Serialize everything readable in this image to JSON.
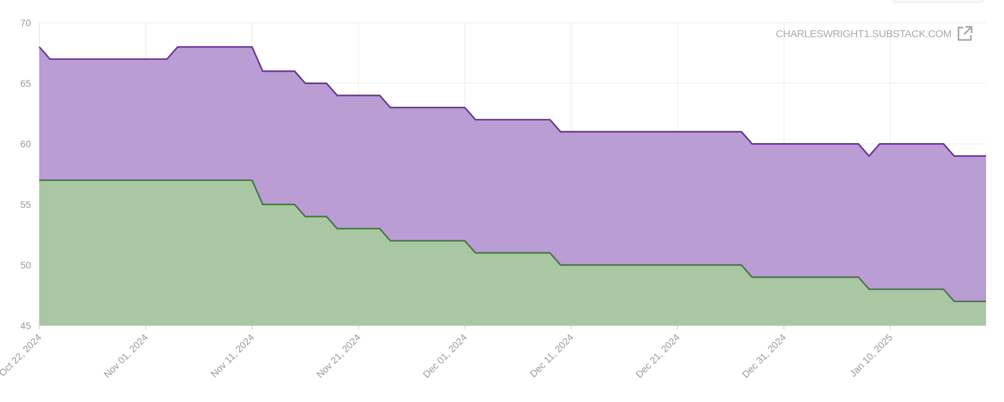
{
  "watermark": {
    "text": "CHARLESWRIGHT1.SUBSTACK.COM",
    "icon": "external-link-icon"
  },
  "colors": {
    "purple_line": "#6a2aa0",
    "purple_fill": "#b99dd3",
    "green_line": "#3f7a34",
    "green_fill": "#aac7a4",
    "grid": "#ececec",
    "tick_text": "#999999"
  },
  "chart_data": {
    "type": "area",
    "x_is_date": true,
    "xlim": [
      "2024-10-22",
      "2025-01-19"
    ],
    "ylim": [
      45,
      70
    ],
    "y_ticks": [
      "45",
      "50",
      "55",
      "60",
      "65",
      "70"
    ],
    "x_ticks": [
      {
        "date": "2024-10-22",
        "label": "Oct 22, 2024"
      },
      {
        "date": "2024-11-01",
        "label": "Nov 01, 2024"
      },
      {
        "date": "2024-11-11",
        "label": "Nov 11, 2024"
      },
      {
        "date": "2024-11-21",
        "label": "Nov 21, 2024"
      },
      {
        "date": "2024-12-01",
        "label": "Dec 01, 2024"
      },
      {
        "date": "2024-12-11",
        "label": "Dec 11, 2024"
      },
      {
        "date": "2024-12-21",
        "label": "Dec 21, 2024"
      },
      {
        "date": "2024-12-31",
        "label": "Dec 31, 2024"
      },
      {
        "date": "2025-01-10",
        "label": "Jan 10, 2025"
      }
    ],
    "grid": true,
    "legend": "none",
    "series": [
      {
        "color": "#6a2aa0",
        "fill": "#b99dd3",
        "points": [
          [
            "2024-10-22",
            68
          ],
          [
            "2024-10-23",
            67
          ],
          [
            "2024-11-03",
            67
          ],
          [
            "2024-11-04",
            68
          ],
          [
            "2024-11-11",
            68
          ],
          [
            "2024-11-12",
            66
          ],
          [
            "2024-11-15",
            66
          ],
          [
            "2024-11-16",
            65
          ],
          [
            "2024-11-18",
            65
          ],
          [
            "2024-11-19",
            64
          ],
          [
            "2024-11-23",
            64
          ],
          [
            "2024-11-24",
            63
          ],
          [
            "2024-12-01",
            63
          ],
          [
            "2024-12-02",
            62
          ],
          [
            "2024-12-09",
            62
          ],
          [
            "2024-12-10",
            61
          ],
          [
            "2024-12-27",
            61
          ],
          [
            "2024-12-28",
            60
          ],
          [
            "2025-01-07",
            60
          ],
          [
            "2025-01-08",
            59
          ],
          [
            "2025-01-09",
            60
          ],
          [
            "2025-01-15",
            60
          ],
          [
            "2025-01-16",
            59
          ],
          [
            "2025-01-19",
            59
          ]
        ]
      },
      {
        "color": "#3f7a34",
        "fill": "#aac7a4",
        "points": [
          [
            "2024-10-22",
            57
          ],
          [
            "2024-11-11",
            57
          ],
          [
            "2024-11-12",
            55
          ],
          [
            "2024-11-15",
            55
          ],
          [
            "2024-11-16",
            54
          ],
          [
            "2024-11-18",
            54
          ],
          [
            "2024-11-19",
            53
          ],
          [
            "2024-11-23",
            53
          ],
          [
            "2024-11-24",
            52
          ],
          [
            "2024-12-01",
            52
          ],
          [
            "2024-12-02",
            51
          ],
          [
            "2024-12-09",
            51
          ],
          [
            "2024-12-10",
            50
          ],
          [
            "2024-12-27",
            50
          ],
          [
            "2024-12-28",
            49
          ],
          [
            "2025-01-07",
            49
          ],
          [
            "2025-01-08",
            48
          ],
          [
            "2025-01-15",
            48
          ],
          [
            "2025-01-16",
            47
          ],
          [
            "2025-01-19",
            47
          ]
        ]
      }
    ]
  }
}
